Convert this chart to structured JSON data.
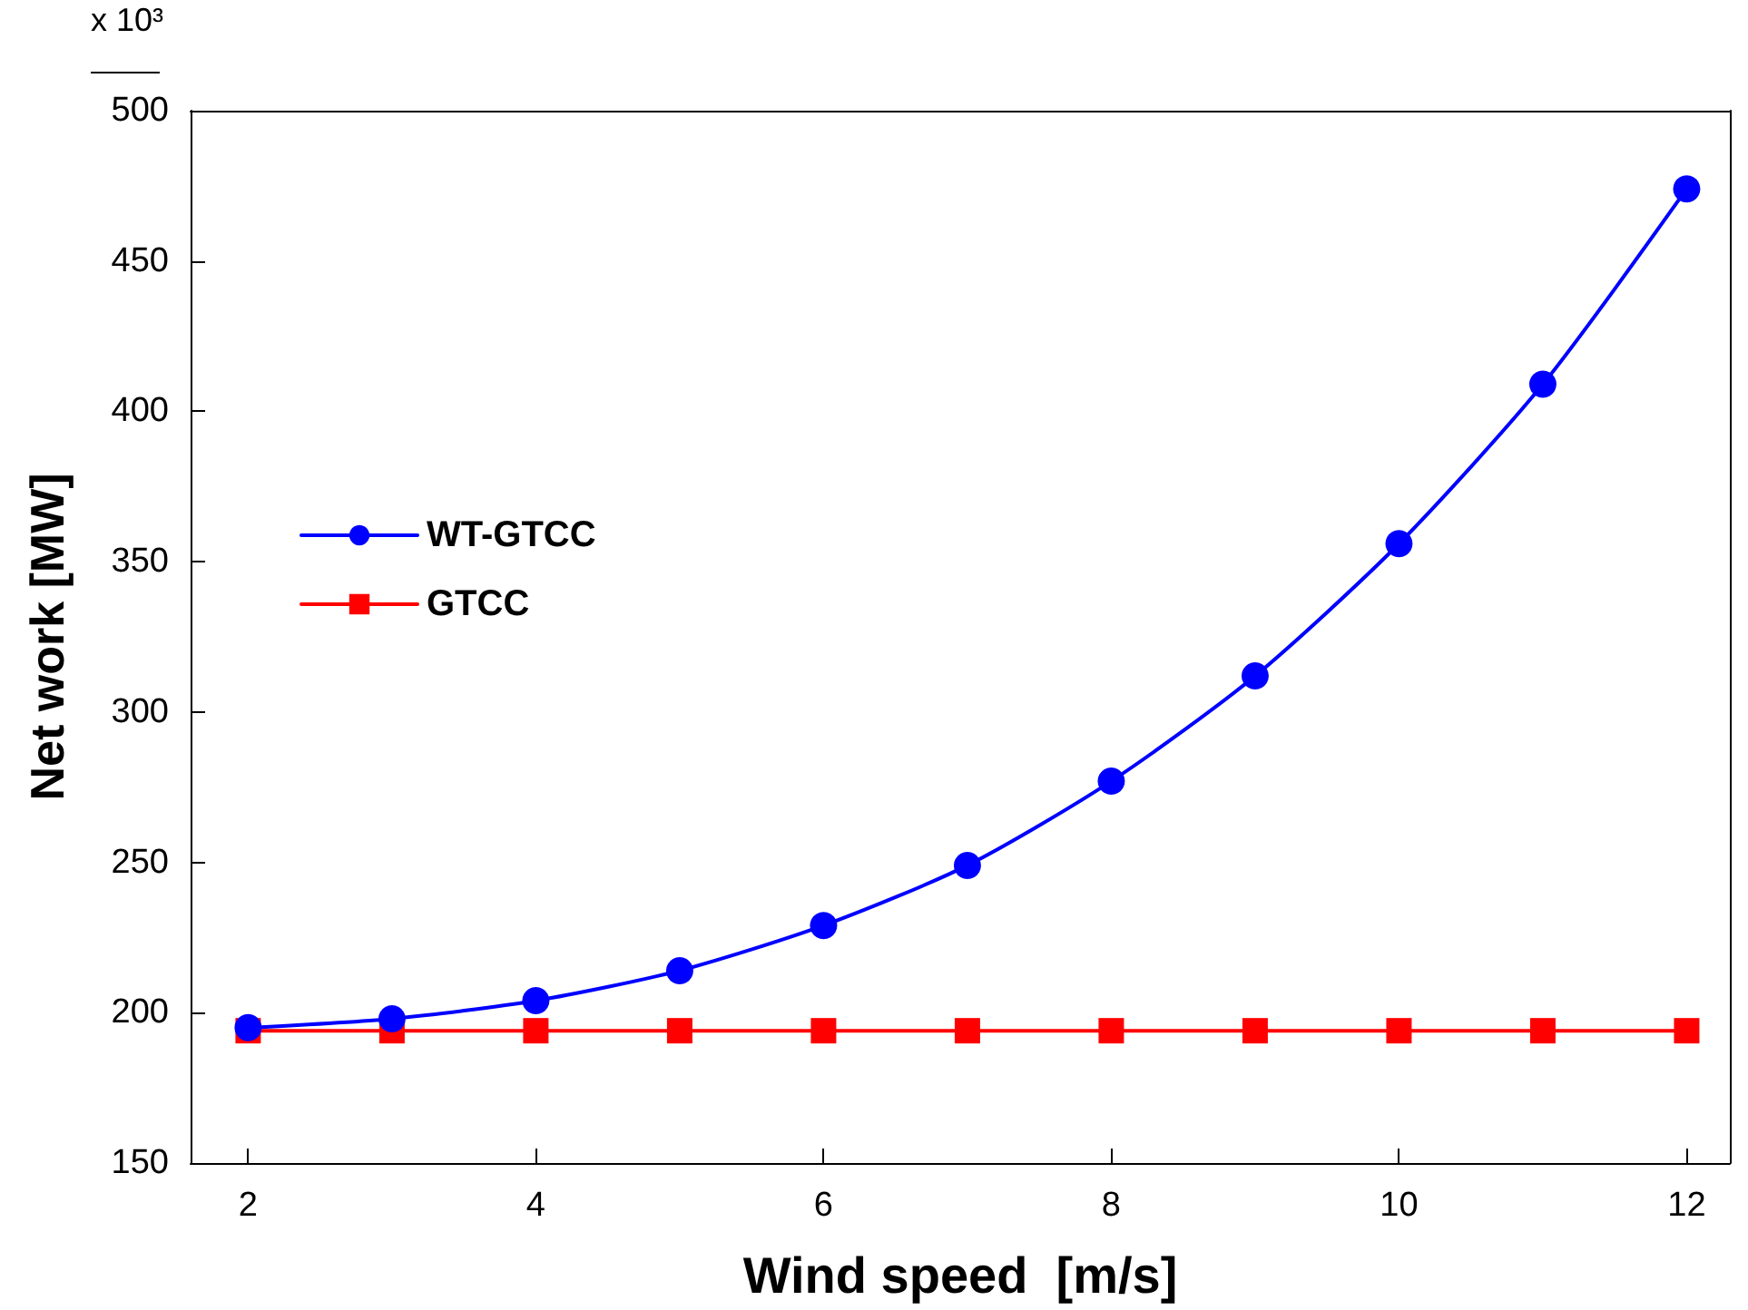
{
  "chart_data": {
    "type": "line",
    "xlabel": "Wind speed  [m/s]",
    "ylabel": "Net work [MW]",
    "annotations": [
      "x 10³"
    ],
    "x": [
      2,
      3,
      4,
      5,
      6,
      7,
      8,
      9,
      10,
      11,
      12
    ],
    "series": [
      {
        "name": "WT-GTCC",
        "color": "#0000ff",
        "marker": "circle",
        "values": [
          195,
          198,
          204,
          214,
          229,
          249,
          277,
          312,
          356,
          409,
          474
        ]
      },
      {
        "name": "GTCC",
        "color": "#ff0000",
        "marker": "square",
        "values": [
          194,
          194,
          194,
          194,
          194,
          194,
          194,
          194,
          194,
          194,
          194
        ]
      }
    ],
    "xlim": [
      1.6,
      12.3
    ],
    "xticks": [
      2,
      4,
      6,
      8,
      10,
      12
    ],
    "ylim": [
      150,
      500
    ],
    "yticks": [
      150,
      200,
      250,
      300,
      350,
      400,
      450,
      500
    ],
    "grid": false,
    "legend": "left",
    "line_style": "solid"
  }
}
